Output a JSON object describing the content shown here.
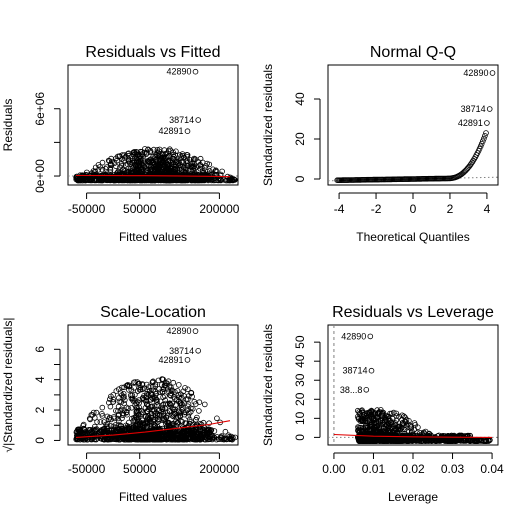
{
  "chart_data": [
    {
      "type": "scatter",
      "title": "Residuals vs Fitted",
      "xlabel": "Fitted values",
      "ylabel": "Residuals",
      "xticks": [
        -50000,
        50000,
        200000
      ],
      "xtick_labels": [
        "-50000",
        "50000",
        "200000"
      ],
      "yticks": [
        0,
        3000000,
        6000000
      ],
      "ytick_labels": [
        "0e+00",
        "",
        "6e+06"
      ],
      "xlim": [
        -85000,
        235000
      ],
      "ylim": [
        -800000,
        9900000
      ],
      "reference_line": {
        "y": 0,
        "style": "dotted",
        "color": "#808080"
      },
      "smoother": {
        "color": "#e00000",
        "x": [
          -70000,
          0,
          60000,
          120000,
          180000,
          220000
        ],
        "y": [
          50000,
          40000,
          30000,
          10000,
          -20000,
          -60000
        ]
      },
      "labeled_points": [
        {
          "label": "42890",
          "x": 155000,
          "y": 9300000
        },
        {
          "label": "38714",
          "x": 160000,
          "y": 5000000
        },
        {
          "label": "42891",
          "x": 140000,
          "y": 4000000
        }
      ],
      "cloud": {
        "x_range": [
          -70000,
          230000
        ],
        "x_center": 80000,
        "y_upper": 2500000,
        "y_lower": -400000
      }
    },
    {
      "type": "scatter",
      "title": "Normal Q-Q",
      "xlabel": "Theoretical Quantiles",
      "ylabel": "Standardized residuals",
      "xticks": [
        -4,
        -2,
        0,
        2,
        4
      ],
      "xtick_labels": [
        "-4",
        "-2",
        "0",
        "2",
        "4"
      ],
      "yticks": [
        0,
        20,
        40
      ],
      "ytick_labels": [
        "0",
        "20",
        "40"
      ],
      "xlim": [
        -4.6,
        4.6
      ],
      "ylim": [
        -3,
        57
      ],
      "reference_line": {
        "x": [
          -4.6,
          4.6
        ],
        "y": [
          -0.9,
          0.9
        ],
        "style": "dotted",
        "color": "#808080"
      },
      "labeled_points": [
        {
          "label": "42890",
          "x": 4.3,
          "y": 53
        },
        {
          "label": "38714",
          "x": 4.15,
          "y": 35
        },
        {
          "label": "42891",
          "x": 4.0,
          "y": 28
        }
      ],
      "curve": {
        "x_range": [
          -4.1,
          3.95
        ],
        "knee": 1.9
      }
    },
    {
      "type": "scatter",
      "title": "Scale-Location",
      "xlabel": "Fitted values",
      "ylabel": "√|Standardized residuals|",
      "xticks": [
        -50000,
        50000,
        200000
      ],
      "xtick_labels": [
        "-50000",
        "50000",
        "200000"
      ],
      "yticks": [
        0,
        1,
        2,
        3,
        4,
        5,
        6
      ],
      "ytick_labels": [
        "0",
        "",
        "2",
        "",
        "4",
        "",
        "6"
      ],
      "xlim": [
        -85000,
        235000
      ],
      "ylim": [
        -0.3,
        7.6
      ],
      "smoother": {
        "color": "#e00000",
        "x": [
          -70000,
          0,
          60000,
          120000,
          180000,
          220000
        ],
        "y": [
          0.2,
          0.35,
          0.55,
          0.8,
          1.05,
          1.3
        ]
      },
      "labeled_points": [
        {
          "label": "42890",
          "x": 155000,
          "y": 7.2
        },
        {
          "label": "38714",
          "x": 160000,
          "y": 5.9
        },
        {
          "label": "42891",
          "x": 140000,
          "y": 5.3
        }
      ],
      "cloud": {
        "x_range": [
          -70000,
          230000
        ],
        "x_center": 75000,
        "y_upper": 4.2,
        "y_lower": 0.05
      }
    },
    {
      "type": "scatter",
      "title": "Residuals vs Leverage",
      "xlabel": "Leverage",
      "ylabel": "Standardized residuals",
      "xticks": [
        0.0,
        0.01,
        0.02,
        0.03,
        0.04
      ],
      "xtick_labels": [
        "0.00",
        "0.01",
        "0.02",
        "0.03",
        "0.04"
      ],
      "yticks": [
        0,
        10,
        20,
        30,
        40,
        50
      ],
      "ytick_labels": [
        "0",
        "10",
        "20",
        "30",
        "40",
        "50"
      ],
      "xlim": [
        -0.0015,
        0.0415
      ],
      "ylim": [
        -4,
        59
      ],
      "reference_line": {
        "y": 0,
        "style": "dotted",
        "color": "#808080"
      },
      "cook_line": {
        "x": 0.0,
        "style": "dashed",
        "color": "#808080"
      },
      "smoother": {
        "color": "#e00000",
        "x": [
          0.0,
          0.01,
          0.02,
          0.03,
          0.04
        ],
        "y": [
          1.5,
          0.6,
          0.3,
          0.1,
          0.0
        ]
      },
      "labeled_points": [
        {
          "label": "42890",
          "x": 0.0092,
          "y": 53
        },
        {
          "label": "38714",
          "x": 0.0095,
          "y": 35
        },
        {
          "label": "38...8",
          "x": 0.0082,
          "y": 25
        }
      ],
      "cloud": {
        "x_range": [
          0.006,
          0.0395
        ],
        "x_center": 0.0098,
        "y_upper": 15,
        "y_lower": -2
      }
    }
  ]
}
